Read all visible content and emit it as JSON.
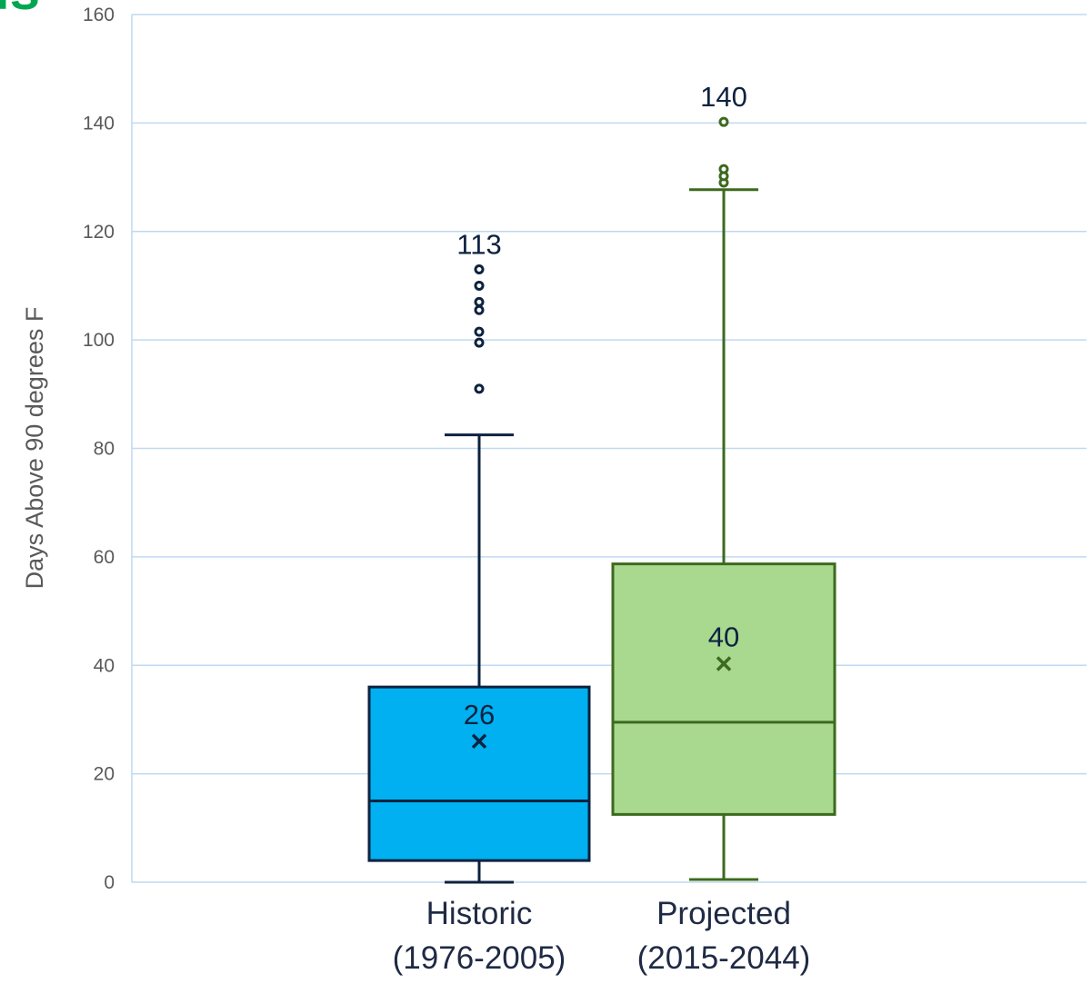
{
  "title_fragment": {
    "text": "ls",
    "color": "#00a651"
  },
  "chart_data": {
    "type": "boxplot",
    "title": "",
    "xlabel": "",
    "ylabel": "Days Above 90 degrees F",
    "ylim": [
      0,
      160
    ],
    "yticks": [
      0,
      20,
      40,
      60,
      80,
      100,
      120,
      140,
      160
    ],
    "grid": true,
    "gridColor": "#bfd9f2",
    "categories": [
      {
        "line1": "Historic",
        "line2": "(1976-2005)"
      },
      {
        "line1": "Projected",
        "line2": "(2015-2044)"
      }
    ],
    "series": [
      {
        "min": 0,
        "q1": 4,
        "median": 15,
        "q3": 36,
        "max": 82.5,
        "mean": 26,
        "outliers": [
          91,
          99.5,
          101.5,
          105.5,
          107,
          110,
          113
        ],
        "mean_label": "26",
        "max_label": "113",
        "fill": "#00b0f0",
        "stroke": "#0d2240",
        "label_color": "#0d2240"
      },
      {
        "min": 0.5,
        "q1": 12.5,
        "median": 29.5,
        "q3": 58.7,
        "max": 127.7,
        "mean": 40.3,
        "outliers": [
          129,
          130.2,
          131.5,
          140.2
        ],
        "mean_label": "40",
        "max_label": "140",
        "fill": "#a9d88f",
        "stroke": "#3c6a1e",
        "label_color": "#0d2240"
      }
    ]
  }
}
